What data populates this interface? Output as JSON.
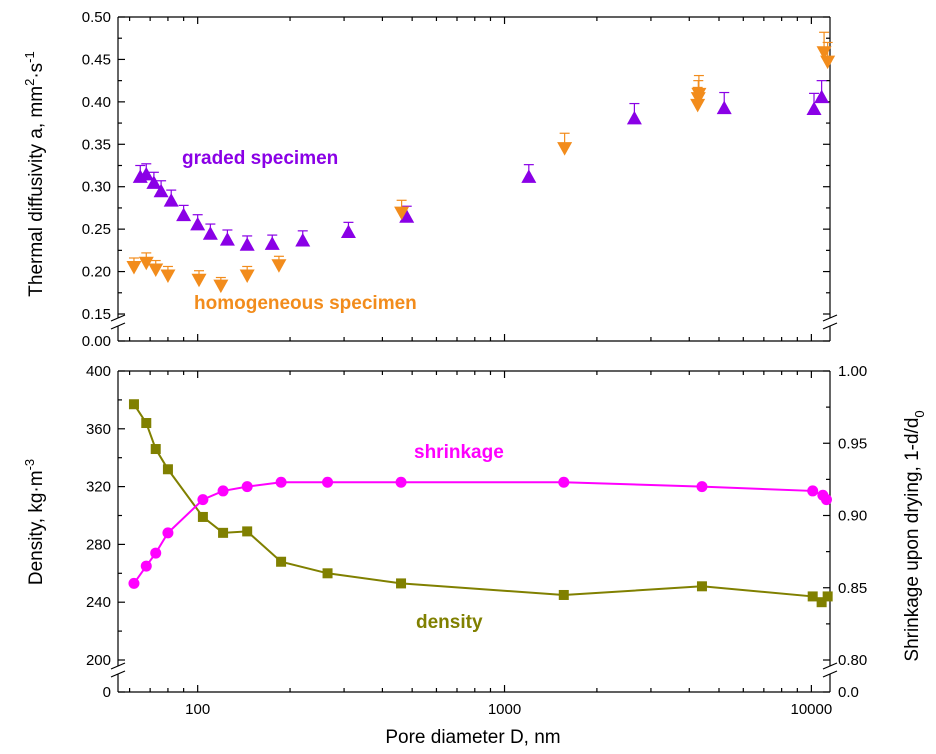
{
  "chart_data": [
    {
      "type": "scatter",
      "xlabel": "Pore diameter D, nm",
      "ylabel": "Thermal diffusivity a, mm·s",
      "ylabel_sup1": "2",
      "ylabel_sup2": "-1",
      "xscale": "log",
      "xlim": [
        55,
        11500
      ],
      "ylim": [
        0.0,
        0.5
      ],
      "yaxis_break": [
        0.005,
        0.15
      ],
      "yticks": [
        "0.00",
        "0.15",
        "0.20",
        "0.25",
        "0.30",
        "0.35",
        "0.40",
        "0.45",
        "0.50"
      ],
      "ytick_values": [
        0.0,
        0.15,
        0.2,
        0.25,
        0.3,
        0.35,
        0.4,
        0.45,
        0.5
      ],
      "colors": {
        "graded": "#8a00e6",
        "homogeneous": "#f28c1c"
      },
      "annotations": [
        "graded specimen",
        "homogeneous specimen"
      ],
      "series": [
        {
          "name": "graded specimen",
          "marker": "triangle-up",
          "x": [
            65,
            68,
            72,
            76,
            82,
            90,
            100,
            110,
            125,
            145,
            175,
            220,
            310,
            480,
            1200,
            2650,
            5200,
            10200,
            10800
          ],
          "y": [
            0.311,
            0.314,
            0.304,
            0.294,
            0.283,
            0.266,
            0.255,
            0.244,
            0.237,
            0.231,
            0.232,
            0.236,
            0.246,
            0.264,
            0.311,
            0.38,
            0.392,
            0.391,
            0.405
          ],
          "err": [
            0.014,
            0.013,
            0.013,
            0.013,
            0.013,
            0.012,
            0.012,
            0.012,
            0.012,
            0.011,
            0.011,
            0.012,
            0.012,
            0.013,
            0.015,
            0.018,
            0.019,
            0.019,
            0.02
          ]
        },
        {
          "name": "homogeneous specimen",
          "marker": "triangle-down",
          "x": [
            62,
            68,
            73,
            80,
            101,
            119,
            145,
            184,
            462,
            1570,
            4260,
            4280,
            4300,
            11000,
            11300
          ],
          "y": [
            0.206,
            0.211,
            0.203,
            0.196,
            0.191,
            0.184,
            0.196,
            0.208,
            0.27,
            0.346,
            0.397,
            0.405,
            0.41,
            0.459,
            0.448
          ],
          "err": [
            0.01,
            0.011,
            0.01,
            0.01,
            0.01,
            0.009,
            0.01,
            0.01,
            0.014,
            0.017,
            0.02,
            0.02,
            0.021,
            0.023,
            0.022
          ]
        }
      ]
    },
    {
      "type": "line",
      "xlabel": "Pore diameter D, nm",
      "xscale": "log",
      "xlim": [
        55,
        11500
      ],
      "xticks": [
        "100",
        "1000",
        "10000"
      ],
      "xtick_values": [
        100,
        1000,
        10000
      ],
      "ylabel_left": "Density, kg·m",
      "ylabel_left_sup": "-3",
      "ylim_left": [
        0,
        400
      ],
      "yaxis_break_left": [
        15,
        200
      ],
      "yticks_left": [
        "0",
        "200",
        "240",
        "280",
        "320",
        "360",
        "400"
      ],
      "ytick_values_left": [
        0,
        200,
        240,
        280,
        320,
        360,
        400
      ],
      "ylabel_right": "Shrinkage upon drying, 1-d/d",
      "ylabel_right_sub": "0",
      "ylim_right": [
        0.0,
        1.0
      ],
      "yaxis_break_right": [
        0.0375,
        0.8
      ],
      "yticks_right": [
        "0.0",
        "0.80",
        "0.85",
        "0.90",
        "0.95",
        "1.00"
      ],
      "ytick_values_right": [
        0.0,
        0.8,
        0.85,
        0.9,
        0.95,
        1.0
      ],
      "colors": {
        "density": "#808000",
        "shrinkage": "#ff00ff"
      },
      "annotations": [
        "shrinkage",
        "density"
      ],
      "series": [
        {
          "name": "density",
          "axis": "left",
          "marker": "square",
          "x": [
            62,
            68,
            73,
            80,
            104,
            121,
            145,
            187,
            265,
            460,
            1560,
            4400,
            10100,
            10800,
            11300
          ],
          "y": [
            377,
            364,
            346,
            332,
            299,
            288,
            289,
            268,
            260,
            253,
            245,
            251,
            244,
            240,
            244
          ]
        },
        {
          "name": "shrinkage",
          "axis": "right",
          "marker": "circle",
          "x": [
            62,
            68,
            73,
            80,
            104,
            121,
            145,
            187,
            265,
            460,
            1560,
            4400,
            10100,
            10900,
            11200
          ],
          "y": [
            0.853,
            0.865,
            0.874,
            0.888,
            0.911,
            0.917,
            0.92,
            0.923,
            0.923,
            0.923,
            0.923,
            0.92,
            0.917,
            0.914,
            0.911
          ]
        }
      ]
    }
  ]
}
